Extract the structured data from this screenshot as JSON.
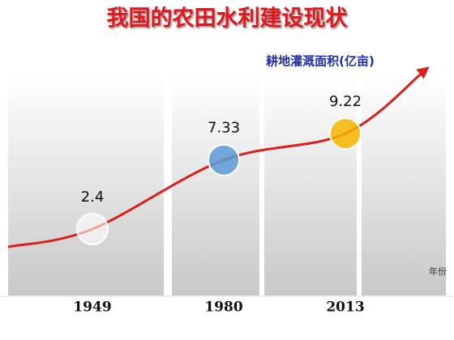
{
  "chart_data": {
    "type": "bubble-line",
    "title": "我国的农田水利建设现状",
    "series_name": "耕地灌溉面积(亿亩)",
    "x_label": "年份",
    "categories": [
      "1949",
      "1980",
      "2013"
    ],
    "values": [
      2.4,
      7.33,
      9.22
    ],
    "colors": [
      "#ffffff",
      "#5b9bd5",
      "#f5b400"
    ],
    "line_color": "#d8201c"
  }
}
